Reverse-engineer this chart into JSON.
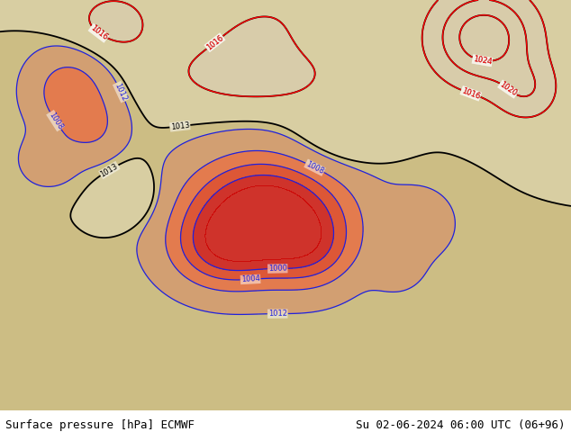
{
  "title_left": "Surface pressure [hPa] ECMWF",
  "title_right": "Su 02-06-2024 06:00 UTC (06+96)",
  "fig_width": 6.34,
  "fig_height": 4.9,
  "dpi": 100,
  "bg_color": "#ffffff",
  "text_color": "#000000",
  "title_fontsize": 9.0,
  "lon_min": 24,
  "lon_max": 155,
  "lat_min": -5,
  "lat_max": 72,
  "contour_levels_black": [
    1013
  ],
  "contour_levels_blue": [
    1000,
    1004,
    1008,
    1012,
    1013
  ],
  "contour_levels_red": [
    1016,
    1020,
    1024
  ],
  "fill_levels": [
    996,
    1000,
    1004,
    1008,
    1012,
    1013,
    1016
  ],
  "fill_colors": [
    "#cc0000",
    "#e03010",
    "#e86030",
    "#d09060",
    "#c8b878",
    "#d8d0a0"
  ],
  "black_lw": 1.3,
  "blue_lw": 0.9,
  "red_lw": 1.0,
  "label_fontsize": 6.0
}
